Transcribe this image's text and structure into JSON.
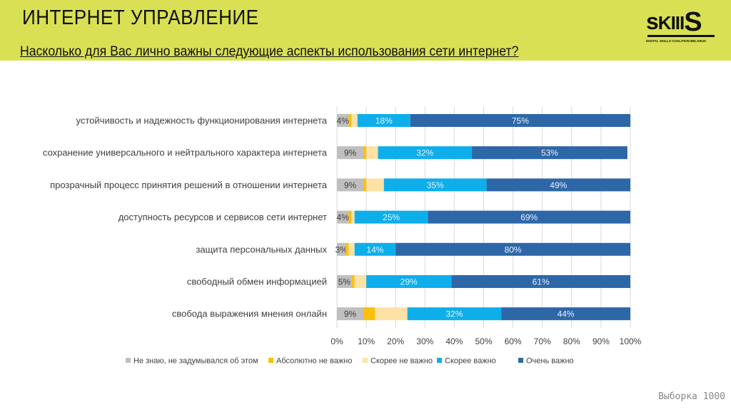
{
  "header": {
    "title": "ИНТЕРНЕТ УПРАВЛЕНИЕ",
    "question": "Насколько для Вас лично важны следующие аспекты использования сети интернет?"
  },
  "logo": {
    "word": "sKIIIS",
    "subtitle": "DIGITAL SKILLS COALITION BELARUS"
  },
  "footer": {
    "sample": "Выборка 1000"
  },
  "chart_data": {
    "type": "bar",
    "orientation": "horizontal-stacked-100",
    "categories": [
      "устойчивость и надежность функционирования интернета",
      "сохранение универсального и нейтрального характера интернета",
      "прозрачный процесс принятия решений в отношении интернета",
      "доступность ресурсов и сервисов сети интернет",
      "защита персональных данных",
      "свободный обмен информацией",
      "свобода выражения мнения онлайн"
    ],
    "series": [
      {
        "name": "Не знаю, не задумывался об этом",
        "color": "#bfbfbf",
        "values": [
          4,
          9,
          9,
          4,
          3,
          5,
          9
        ],
        "labels": [
          "4%",
          "9%",
          "9%",
          "4%",
          "3%",
          "5%",
          "9%"
        ]
      },
      {
        "name": "Абсолютно не важно",
        "color": "#fbbf0e",
        "values": [
          1,
          1,
          1,
          1,
          1,
          1,
          4
        ],
        "labels": [
          "",
          "",
          "",
          "",
          "",
          "",
          ""
        ]
      },
      {
        "name": "Скорее не важно",
        "color": "#fde2a6",
        "values": [
          2,
          4,
          6,
          1,
          2,
          4,
          11
        ],
        "labels": [
          "",
          "",
          "",
          "",
          "",
          "",
          ""
        ]
      },
      {
        "name": "Скорее важно",
        "color": "#0eaeea",
        "values": [
          18,
          32,
          35,
          25,
          14,
          29,
          32
        ],
        "labels": [
          "18%",
          "32%",
          "35%",
          "25%",
          "14%",
          "29%",
          "32%"
        ]
      },
      {
        "name": "Очень важно",
        "color": "#2d67a8",
        "values": [
          75,
          53,
          49,
          69,
          80,
          61,
          44
        ],
        "labels": [
          "75%",
          "53%",
          "49%",
          "69%",
          "80%",
          "61%",
          "44%"
        ]
      }
    ],
    "xticks": [
      "0%",
      "10%",
      "20%",
      "30%",
      "40%",
      "50%",
      "60%",
      "70%",
      "80%",
      "90%",
      "100%"
    ],
    "xlim": [
      0,
      100
    ],
    "grid": true,
    "legend": "bottom"
  }
}
